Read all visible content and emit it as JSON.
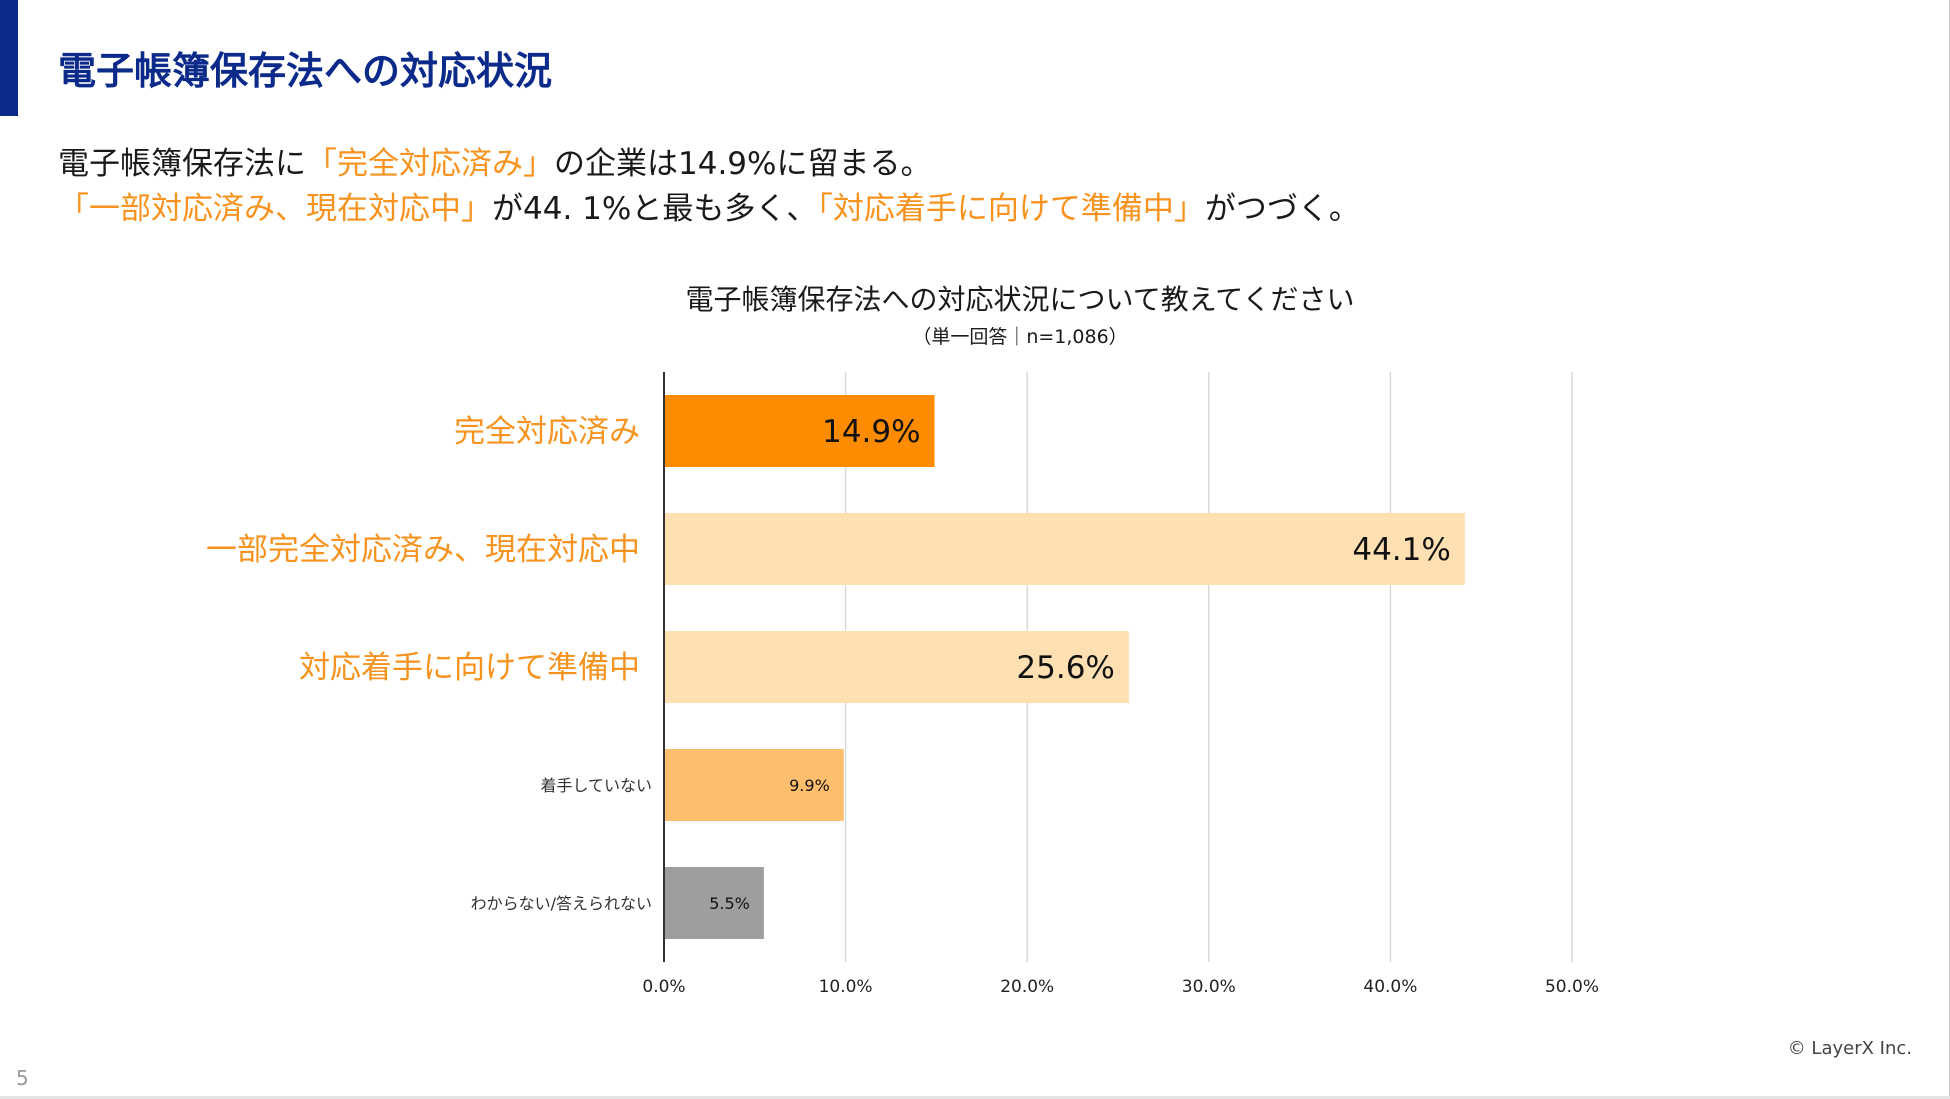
{
  "page": {
    "title": "電子帳簿保存法への対応状況",
    "page_number": "5",
    "copyright": "© LayerX Inc.",
    "colors": {
      "navy": "#0b2a8a",
      "orange": "#f7931e",
      "accent_bar": "#0b2a8a"
    }
  },
  "summary": {
    "line1": [
      {
        "text": "電子帳簿保存法に",
        "highlight": false
      },
      {
        "text": "「完全対応済み」",
        "highlight": true
      },
      {
        "text": "の企業は14.9%に留まる。",
        "highlight": false
      }
    ],
    "line2": [
      {
        "text": "「一部対応済み、現在対応中」",
        "highlight": true
      },
      {
        "text": "が44. 1%と最も多く、",
        "highlight": false
      },
      {
        "text": "「対応着手に向けて準備中」",
        "highlight": true
      },
      {
        "text": "がつづく。",
        "highlight": false
      }
    ]
  },
  "chart_data": {
    "type": "bar",
    "orientation": "horizontal",
    "title": "電子帳簿保存法への対応状況について教えてください",
    "subtitle": "（単一回答｜n=1,086）",
    "xlim": [
      0,
      50
    ],
    "xticks": [
      "0.0%",
      "10.0%",
      "20.0%",
      "30.0%",
      "40.0%",
      "50.0%"
    ],
    "grid": true,
    "categories": [
      "完全対応済み",
      "一部完全対応済み、現在対応中",
      "対応着手に向けて準備中",
      "着手していない",
      "わからない/答えられない"
    ],
    "values": [
      14.9,
      44.1,
      25.6,
      9.9,
      5.5
    ],
    "labels": [
      "14.9%",
      "44.1%",
      "25.6%",
      "9.9%",
      "5.5%"
    ],
    "emphasis": [
      true,
      true,
      true,
      false,
      false
    ],
    "bar_colors": [
      "#ff8c00",
      "#ffe0b3",
      "#ffe0b3",
      "#ffbe6b",
      "#9e9e9e"
    ],
    "category_label_colors": [
      "#f7931e",
      "#f7931e",
      "#f7931e",
      "#333333",
      "#333333"
    ]
  }
}
